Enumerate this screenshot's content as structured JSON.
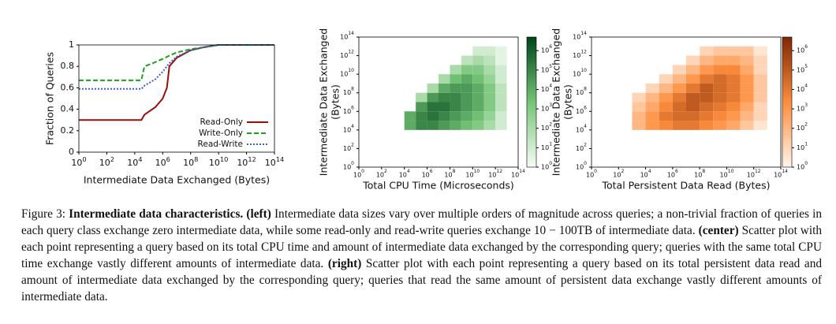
{
  "chart_data": [
    {
      "type": "line",
      "ylabel": "Fraction of Queries",
      "xlabel": "Intermediate Data Exchanged (Bytes)",
      "xscale": "log",
      "xlim": [
        1,
        100000000000000.0
      ],
      "ylim": [
        0,
        1
      ],
      "legend": "lower right",
      "xticks": [
        {
          "value": 1,
          "label": "10^0"
        },
        {
          "value": 100.0,
          "label": "10^2"
        },
        {
          "value": 10000.0,
          "label": "10^4"
        },
        {
          "value": 1000000.0,
          "label": "10^6"
        },
        {
          "value": 100000000.0,
          "label": "10^8"
        },
        {
          "value": 10000000000.0,
          "label": "10^10"
        },
        {
          "value": 1000000000000.0,
          "label": "10^12"
        },
        {
          "value": 100000000000000.0,
          "label": "10^14"
        }
      ],
      "yticks": [
        0,
        0.2,
        0.4,
        0.6,
        0.8,
        1
      ],
      "series": [
        {
          "name": "Read-Only",
          "color": "#9b0d0d",
          "dash": "solid",
          "x": [
            1,
            30000.0,
            50000.0,
            300000.0,
            1000000.0,
            2000000.0,
            3000000.0,
            10000000.0,
            100000000.0,
            1000000000.0,
            10000000000.0,
            100000000000000.0
          ],
          "values": [
            0.3,
            0.3,
            0.35,
            0.42,
            0.5,
            0.6,
            0.8,
            0.88,
            0.95,
            0.98,
            1,
            1
          ]
        },
        {
          "name": "Write-Only",
          "color": "#1ca01c",
          "dash": "dashed",
          "x": [
            1,
            30000.0,
            40000.0,
            50000.0,
            200000.0,
            1000000.0,
            3000000.0,
            10000000.0,
            100000000.0,
            1000000000.0,
            10000000000.0,
            100000000000000.0
          ],
          "values": [
            0.67,
            0.67,
            0.75,
            0.8,
            0.83,
            0.87,
            0.9,
            0.93,
            0.96,
            0.98,
            1,
            1
          ]
        },
        {
          "name": "Read-Write",
          "color": "#3a5fcd",
          "dash": "dotted",
          "x": [
            1,
            30000.0,
            50000.0,
            300000.0,
            1000000.0,
            3000000.0,
            10000000.0,
            100000000.0,
            1000000000.0,
            10000000000.0,
            100000000000000.0
          ],
          "values": [
            0.59,
            0.59,
            0.62,
            0.68,
            0.75,
            0.83,
            0.89,
            0.95,
            0.98,
            1,
            1
          ]
        }
      ]
    },
    {
      "type": "heatmap",
      "ylabel": [
        "Intermediate Data Exchanged",
        "(Bytes)"
      ],
      "xlabel": "Total CPU Time (Microseconds)",
      "xscale": "log",
      "yscale": "log",
      "xlim": [
        1,
        100000000000000.0
      ],
      "ylim": [
        1,
        100000000000000.0
      ],
      "xticks": [
        {
          "value": 1,
          "label": "10^0"
        },
        {
          "value": 100.0,
          "label": "10^2"
        },
        {
          "value": 10000.0,
          "label": "10^4"
        },
        {
          "value": 1000000.0,
          "label": "10^6"
        },
        {
          "value": 100000000.0,
          "label": "10^8"
        },
        {
          "value": 10000000000.0,
          "label": "10^10"
        },
        {
          "value": 1000000000000.0,
          "label": "10^12"
        },
        {
          "value": 100000000000000.0,
          "label": "10^14"
        }
      ],
      "yticks": [
        {
          "value": 1,
          "label": "10^0"
        },
        {
          "value": 100.0,
          "label": "10^2"
        },
        {
          "value": 10000.0,
          "label": "10^4"
        },
        {
          "value": 1000000.0,
          "label": "10^6"
        },
        {
          "value": 100000000.0,
          "label": "10^8"
        },
        {
          "value": 10000000000.0,
          "label": "10^10"
        },
        {
          "value": 1000000000000.0,
          "label": "10^12"
        },
        {
          "value": 100000000000000.0,
          "label": "10^14"
        }
      ],
      "x_bins": [
        10000.0,
        100000.0,
        1000000.0,
        10000000.0,
        100000000.0,
        1000000000.0,
        10000000000.0,
        100000000000.0,
        1000000000000.0,
        10000000000000.0
      ],
      "y_bins": [
        10000.0,
        100000.0,
        1000000.0,
        10000000.0,
        100000000.0,
        1000000000.0,
        10000000000.0,
        100000000000.0,
        1000000000000.0,
        10000000000000.0
      ],
      "counts": [
        [
          10000.0,
          100000.0,
          100000.0,
          30000.0,
          10000.0,
          3000.0,
          1000.0,
          100,
          10
        ],
        [
          10000.0,
          100000.0,
          300000.0,
          100000.0,
          30000.0,
          10000.0,
          3000.0,
          300,
          10
        ],
        [
          null,
          30000.0,
          300000.0,
          300000.0,
          100000.0,
          30000.0,
          10000.0,
          1000.0,
          30
        ],
        [
          null,
          100,
          30000.0,
          100000.0,
          100000.0,
          30000.0,
          10000.0,
          1000.0,
          30
        ],
        [
          null,
          null,
          100,
          10000.0,
          30000.0,
          30000.0,
          10000.0,
          1000.0,
          30
        ],
        [
          null,
          null,
          null,
          100,
          3000.0,
          10000.0,
          3000.0,
          300,
          10
        ],
        [
          null,
          null,
          null,
          null,
          100,
          1000.0,
          1000.0,
          100,
          10
        ],
        [
          null,
          null,
          null,
          null,
          null,
          30,
          100,
          30,
          3
        ],
        [
          null,
          null,
          null,
          null,
          null,
          null,
          10,
          10,
          3
        ]
      ],
      "clim": [
        1,
        5000000.0
      ],
      "colormap": [
        "#f7fcf5",
        "#74c476",
        "#00441b"
      ],
      "cticks": [
        {
          "value": 1,
          "label": "10^0"
        },
        {
          "value": 10,
          "label": "10^1"
        },
        {
          "value": 100,
          "label": "10^2"
        },
        {
          "value": 1000.0,
          "label": "10^3"
        },
        {
          "value": 10000.0,
          "label": "10^4"
        },
        {
          "value": 100000.0,
          "label": "10^5"
        },
        {
          "value": 1000000.0,
          "label": "10^6"
        }
      ]
    },
    {
      "type": "heatmap",
      "ylabel": [
        "Intermediate Data Exchanged",
        "(Bytes)"
      ],
      "xlabel": "Total Persistent Data Read (Bytes)",
      "xscale": "log",
      "yscale": "log",
      "xlim": [
        1,
        100000000000000.0
      ],
      "ylim": [
        1,
        100000000000000.0
      ],
      "xticks": [
        {
          "value": 1,
          "label": "10^0"
        },
        {
          "value": 100.0,
          "label": "10^2"
        },
        {
          "value": 10000.0,
          "label": "10^4"
        },
        {
          "value": 1000000.0,
          "label": "10^6"
        },
        {
          "value": 100000000.0,
          "label": "10^8"
        },
        {
          "value": 10000000000.0,
          "label": "10^10"
        },
        {
          "value": 1000000000000.0,
          "label": "10^12"
        },
        {
          "value": 100000000000000.0,
          "label": "10^14"
        }
      ],
      "yticks": [
        {
          "value": 1,
          "label": "10^0"
        },
        {
          "value": 100.0,
          "label": "10^2"
        },
        {
          "value": 10000.0,
          "label": "10^4"
        },
        {
          "value": 1000000.0,
          "label": "10^6"
        },
        {
          "value": 100000000.0,
          "label": "10^8"
        },
        {
          "value": 10000000000.0,
          "label": "10^10"
        },
        {
          "value": 1000000000000.0,
          "label": "10^12"
        },
        {
          "value": 100000000000000.0,
          "label": "10^14"
        }
      ],
      "x_bins": [
        1000.0,
        10000.0,
        100000.0,
        1000000.0,
        10000000.0,
        100000000.0,
        1000000000.0,
        10000000000.0,
        100000000000.0,
        1000000000000.0,
        10000000000000.0
      ],
      "y_bins": [
        10000.0,
        100000.0,
        1000000.0,
        10000000.0,
        100000000.0,
        1000000000.0,
        10000000000.0,
        100000000000.0,
        1000000000000.0,
        10000000000000.0
      ],
      "counts": [
        [
          100,
          1000.0,
          3000.0,
          10000.0,
          10000.0,
          3000.0,
          1000.0,
          300,
          30,
          3
        ],
        [
          100,
          1000.0,
          10000.0,
          30000.0,
          30000.0,
          10000.0,
          3000.0,
          1000.0,
          100,
          10
        ],
        [
          30,
          300,
          3000.0,
          30000.0,
          100000.0,
          30000.0,
          10000.0,
          3000.0,
          300,
          10
        ],
        [
          10,
          100,
          1000.0,
          10000.0,
          100000.0,
          100000.0,
          30000.0,
          10000.0,
          1000.0,
          30
        ],
        [
          null,
          10,
          100,
          1000.0,
          10000.0,
          100000.0,
          30000.0,
          10000.0,
          1000.0,
          30
        ],
        [
          null,
          null,
          10,
          100,
          1000.0,
          10000.0,
          30000.0,
          10000.0,
          1000.0,
          30
        ],
        [
          null,
          null,
          null,
          10,
          100,
          1000.0,
          3000.0,
          3000.0,
          300,
          10
        ],
        [
          null,
          null,
          null,
          null,
          10,
          100,
          300,
          300,
          100,
          10
        ],
        [
          null,
          null,
          null,
          null,
          null,
          10,
          30,
          30,
          30,
          3
        ]
      ],
      "clim": [
        1,
        5000000.0
      ],
      "colormap": [
        "#fff5eb",
        "#fd8d3c",
        "#7f2704"
      ],
      "cticks": [
        {
          "value": 1,
          "label": "10^0"
        },
        {
          "value": 10,
          "label": "10^1"
        },
        {
          "value": 100,
          "label": "10^2"
        },
        {
          "value": 1000.0,
          "label": "10^3"
        },
        {
          "value": 10000.0,
          "label": "10^4"
        },
        {
          "value": 100000.0,
          "label": "10^5"
        },
        {
          "value": 1000000.0,
          "label": "10^6"
        }
      ]
    }
  ],
  "caption": [
    {
      "text": "Figure 3: ",
      "bold": false
    },
    {
      "text": "Intermediate data characteristics.",
      "bold": true
    },
    {
      "text": " ",
      "bold": false
    },
    {
      "text": "(left)",
      "bold": true
    },
    {
      "text": " Intermediate data sizes vary over multiple orders of magnitude across queries; a non-trivial fraction of queries in each query class exchange zero intermediate data, while some read-only and read-write queries exchange 10 − 100TB of intermediate data. ",
      "bold": false
    },
    {
      "text": "(center)",
      "bold": true
    },
    {
      "text": " Scatter plot with each point representing a query based on its total CPU time and amount of intermediate data exchanged by the corresponding query; queries with the same total CPU time exchange vastly different amounts of intermediate data. ",
      "bold": false
    },
    {
      "text": "(right)",
      "bold": true
    },
    {
      "text": " Scatter plot with each point representing a query based on its total persistent data read and amount of intermediate data exchanged by the corresponding query; queries that read the same amount of persistent data exchange vastly different amounts of intermediate data.",
      "bold": false
    }
  ]
}
